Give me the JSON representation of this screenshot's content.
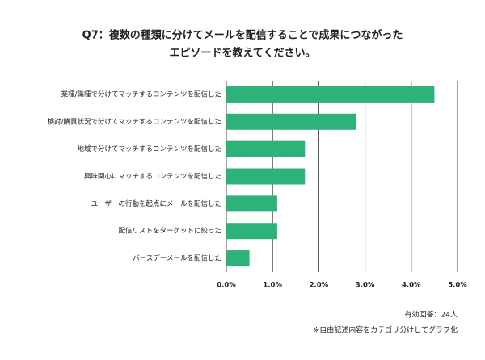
{
  "chart_data": {
    "type": "bar",
    "orientation": "horizontal",
    "title": [
      "Q7：複数の種類に分けてメールを配信することで成果につながった",
      "エピソードを教えてください。"
    ],
    "categories": [
      "業種/職種で分けてマッチするコンテンツを配信した",
      "検討/購買状況で分けてマッチするコンテンツを配信した",
      "地域で分けてマッチするコンテンツを配信した",
      "興味関心にマッチするコンテンツを配信した",
      "ユーザーの行動を起点にメールを配信した",
      "配信リストをターゲットに絞った",
      "バースデーメールを配信した"
    ],
    "values": [
      4.5,
      2.8,
      1.7,
      1.7,
      1.1,
      1.1,
      0.5
    ],
    "color": "#2db37a",
    "xlim": [
      0,
      5
    ],
    "xticks": [
      {
        "value": 0,
        "label": "0.0%"
      },
      {
        "value": 1,
        "label": "1.0%"
      },
      {
        "value": 2,
        "label": "2.0%"
      },
      {
        "value": 3,
        "label": "3.0%"
      },
      {
        "value": 4,
        "label": "4.0%"
      },
      {
        "value": 5,
        "label": "5.0%"
      }
    ],
    "grid": true,
    "notes": [
      "有効回答：24人",
      "※自由記述内容をカテゴリ分けしてグラフ化"
    ]
  }
}
